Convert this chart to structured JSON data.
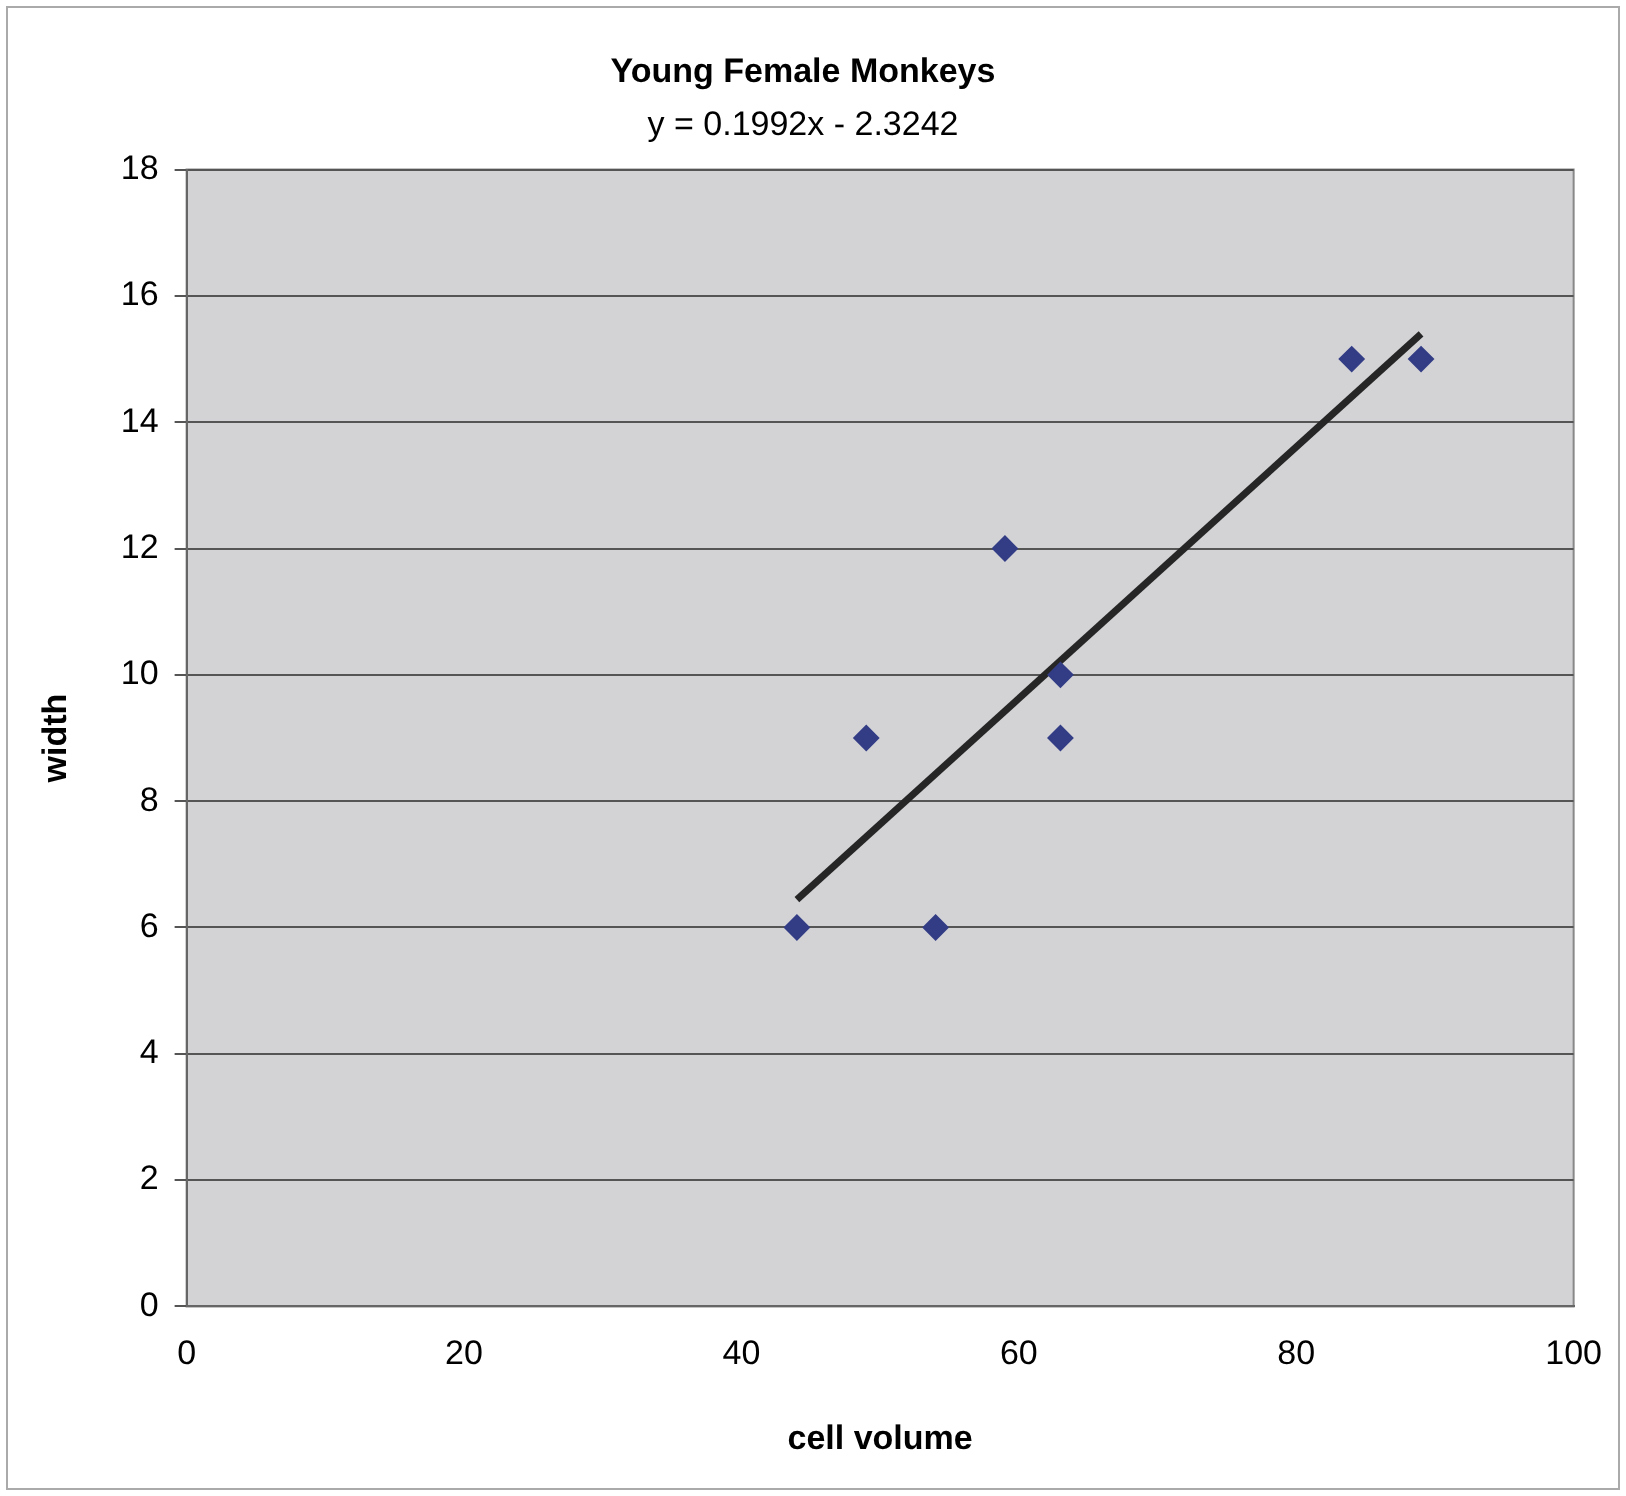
{
  "chart_data": {
    "type": "scatter",
    "title": "Young Female Monkeys",
    "subtitle": "y = 0.1992x - 2.3242",
    "xlabel": "cell volume",
    "ylabel": "width",
    "x": [
      44,
      49,
      54,
      59,
      63,
      63,
      84,
      89
    ],
    "series": [
      {
        "color": "#333d85",
        "values": [
          6,
          9,
          6,
          12,
          10,
          9,
          15,
          15
        ],
        "marker": "diamond"
      },
      {
        "type": "line",
        "color": "#262626",
        "x": [
          44,
          89
        ],
        "values": [
          6.44,
          15.4
        ],
        "marker": "none"
      }
    ],
    "xlim": [
      0,
      100
    ],
    "xticks": [
      0,
      20,
      40,
      60,
      80,
      100
    ],
    "ylim": [
      0,
      18
    ],
    "yticks": [
      0,
      2,
      4,
      6,
      8,
      10,
      12,
      14,
      16,
      18
    ],
    "grid": "y",
    "legend": false
  }
}
